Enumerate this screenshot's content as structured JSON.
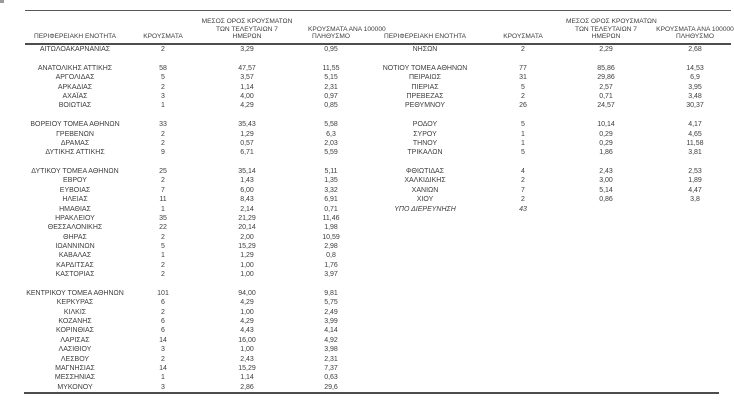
{
  "colors": {
    "text": "#3d3d3d",
    "border": "#4d4d4d"
  },
  "report": {
    "columns": {
      "region": "ΠΕΡΙΦΕΡΕΙΑΚΗ ΕΝΟΤΗΤΑ",
      "cases": "ΚΡΟΥΣΜΑΤΑ",
      "avg7_lines": [
        "ΜΕΣΟΣ ΟΡΟΣ ΚΡΟΥΣΜΑΤΩΝ",
        "ΤΩΝ ΤΕΛΕΥΤΑΙΩΝ 7",
        "ΗΜΕΡΩΝ"
      ],
      "per100k_lines": [
        "ΚΡΟΥΣΜΑΤΑ ΑΝΑ 100000",
        "ΠΛΗΘΥΣΜΟ"
      ]
    },
    "left_rows": [
      [
        "ΑΙΤΩΛΟΑΚΑΡΝΑΝΙΑΣ",
        "2",
        "3,29",
        "0,95"
      ],
      null,
      [
        "ΑΝΑΤΟΛΙΚΗΣ ΑΤΤΙΚΗΣ",
        "58",
        "47,57",
        "11,55"
      ],
      [
        "ΑΡΓΟΛΙΔΑΣ",
        "5",
        "3,57",
        "5,15"
      ],
      [
        "ΑΡΚΑΔΙΑΣ",
        "2",
        "1,14",
        "2,31"
      ],
      [
        "ΑΧΑΪΑΣ",
        "3",
        "4,00",
        "0,97"
      ],
      [
        "ΒΟΙΩΤΙΑΣ",
        "1",
        "4,29",
        "0,85"
      ],
      null,
      [
        "ΒΟΡΕΙΟΥ ΤΟΜΕΑ ΑΘΗΝΩΝ",
        "33",
        "35,43",
        "5,58"
      ],
      [
        "ΓΡΕΒΕΝΩΝ",
        "2",
        "1,29",
        "6,3"
      ],
      [
        "ΔΡΑΜΑΣ",
        "2",
        "0,57",
        "2,03"
      ],
      [
        "ΔΥΤΙΚΗΣ ΑΤΤΙΚΗΣ",
        "9",
        "6,71",
        "5,59"
      ],
      null,
      [
        "ΔΥΤΙΚΟΥ ΤΟΜΕΑ ΑΘΗΝΩΝ",
        "25",
        "35,14",
        "5,11"
      ],
      [
        "ΕΒΡΟΥ",
        "2",
        "1,43",
        "1,35"
      ],
      [
        "ΕΥΒΟΙΑΣ",
        "7",
        "6,00",
        "3,32"
      ],
      [
        "ΗΛΕΙΑΣ",
        "11",
        "8,43",
        "6,91"
      ],
      [
        "ΗΜΑΘΙΑΣ",
        "1",
        "2,14",
        "0,71"
      ],
      [
        "ΗΡΑΚΛΕΙΟΥ",
        "35",
        "21,29",
        "11,46"
      ],
      [
        "ΘΕΣΣΑΛΟΝΙΚΗΣ",
        "22",
        "20,14",
        "1,98"
      ],
      [
        "ΘΗΡΑΣ",
        "2",
        "2,00",
        "10,59"
      ],
      [
        "ΙΩΑΝΝΙΝΩΝ",
        "5",
        "15,29",
        "2,98"
      ],
      [
        "ΚΑΒΑΛΑΣ",
        "1",
        "1,29",
        "0,8"
      ],
      [
        "ΚΑΡΔΙΤΣΑΣ",
        "2",
        "1,00",
        "1,76"
      ],
      [
        "ΚΑΣΤΟΡΙΑΣ",
        "2",
        "1,00",
        "3,97"
      ],
      null,
      [
        "ΚΕΝΤΡΙΚΟΥ ΤΟΜΕΑ ΑΘΗΝΩΝ",
        "101",
        "94,00",
        "9,81"
      ],
      [
        "ΚΕΡΚΥΡΑΣ",
        "6",
        "4,29",
        "5,75"
      ],
      [
        "ΚΙΛΚΙΣ",
        "2",
        "1,00",
        "2,49"
      ],
      [
        "ΚΟΖΑΝΗΣ",
        "6",
        "4,29",
        "3,99"
      ],
      [
        "ΚΟΡΙΝΘΙΑΣ",
        "6",
        "4,43",
        "4,14"
      ],
      [
        "ΛΑΡΙΣΑΣ",
        "14",
        "16,00",
        "4,92"
      ],
      [
        "ΛΑΣΙΘΙΟΥ",
        "3",
        "1,00",
        "3,98"
      ],
      [
        "ΛΕΣΒΟΥ",
        "2",
        "2,43",
        "2,31"
      ],
      [
        "ΜΑΓΝΗΣΙΑΣ",
        "14",
        "15,29",
        "7,37"
      ],
      [
        "ΜΕΣΣΗΝΙΑΣ",
        "1",
        "1,14",
        "0,63"
      ],
      [
        "ΜΥΚΟΝΟΥ",
        "3",
        "2,86",
        "29,6"
      ]
    ],
    "right_rows": [
      [
        "ΝΗΣΩΝ",
        "2",
        "2,29",
        "2,68"
      ],
      null,
      [
        "ΝΟΤΙΟΥ ΤΟΜΕΑ ΑΘΗΝΩΝ",
        "77",
        "85,86",
        "14,53"
      ],
      [
        "ΠΕΙΡΑΙΩΣ",
        "31",
        "29,86",
        "6,9"
      ],
      [
        "ΠΙΕΡΙΑΣ",
        "5",
        "2,57",
        "3,95"
      ],
      [
        "ΠΡΕΒΕΖΑΣ",
        "2",
        "0,71",
        "3,48"
      ],
      [
        "ΡΕΘΥΜΝΟΥ",
        "26",
        "24,57",
        "30,37"
      ],
      null,
      [
        "ΡΟΔΟΥ",
        "5",
        "10,14",
        "4,17"
      ],
      [
        "ΣΥΡΟΥ",
        "1",
        "0,29",
        "4,65"
      ],
      [
        "ΤΗΝΟΥ",
        "1",
        "0,29",
        "11,58"
      ],
      [
        "ΤΡΙΚΑΛΩΝ",
        "5",
        "1,86",
        "3,81"
      ],
      null,
      [
        "ΦΘΙΩΤΙΔΑΣ",
        "4",
        "2,43",
        "2,53"
      ],
      [
        "ΧΑΛΚΙΔΙΚΗΣ",
        "2",
        "3,00",
        "1,89"
      ],
      [
        "ΧΑΝΙΩΝ",
        "7",
        "5,14",
        "4,47"
      ],
      [
        "ΧΙΟΥ",
        "2",
        "0,86",
        "3,8"
      ],
      {
        "cells": [
          "ΥΠΟ ΔΙΕΡΕΥΝΗΣΗ",
          "43",
          "",
          ""
        ],
        "italic": true
      }
    ]
  }
}
